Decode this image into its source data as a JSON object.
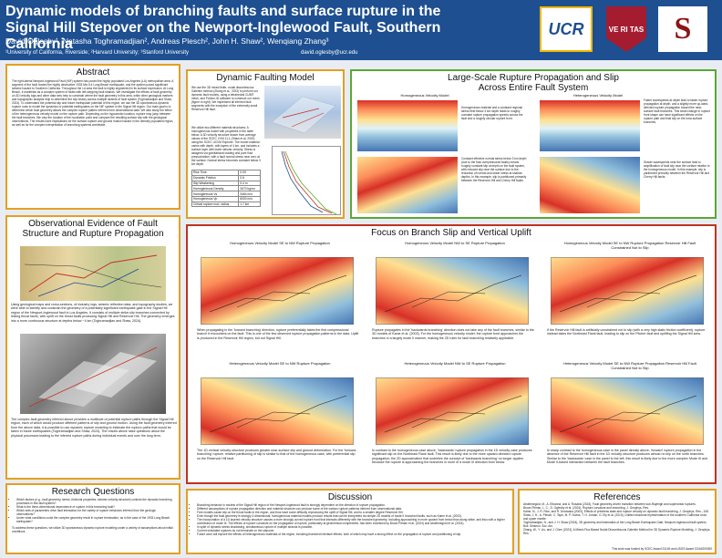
{
  "header": {
    "title": "Dynamic models of branching faults and surface rupture in the Signal Hill Stepover on the Newport-Inglewood Fault, Southern California",
    "authors": "David Oglesby¹, Natasha Toghramadjian², Andreas Plesch², John H. Shaw², Wenqiang Zhang³",
    "affiliations": "¹University of California, Riverside; ²Harvard University; ³Stanford University",
    "email": "david.oglesby@ucr.edu",
    "logos": {
      "ucr": "UCR",
      "harvard": "VE RI TAS",
      "stanford": "S"
    }
  },
  "abstract": {
    "title": "Abstract",
    "text": "The right-lateral Newport-Inglewood Fault (NIF) system has posed the highly populated Los Angeles (LA) metropolitan area. A segment of the fault hosted the highly destructive 1933 Mw 6.4 Long Beach earthquake, and the system posed significant seismic hazard to Southern California. Throughout the LA area the fault is highly segmented in its surface expression. At Long Beach, it manifests as a complex system of faults with left-stepping fault strands. We investigate the effects of fault geometry on 3D velocity logs and other data sets help to constrain where the fault geometry in this area, while other geological markers and topographic analysis help to determine the slip history across multiple strands of fault system (Toghramadjian and Shaw, 2024). To understand the potential slip and future earthquake potential of this region, we use the 3D spontaneous dynamic rupture code to model the dynamics of potential earthquakes on the NIF system in the Signal Hill region. Our main goal is to determine which fault geometry allows the complex rupture pattern inferred from observational data. We also study the effect of the heterogeneous velocity model on the rupture path. Depending on the hypocenter location, rupture may jump between the fault branches. We vary the location of the nucleation point and compare the resulting surface slip with the geological observations. The results have implications for the surface rupture and ground motion hazard in the densely populated region, as well as for the complex interpretation of branching systems worldwide."
  },
  "observational": {
    "title": "Observational Evidence of Fault Structure and Rupture Propagation",
    "caption1": "Using geological maps and cross-sections, oil industry logs, seismic reflection data, and topography studies, we were able to identify and constrain the geometry of a potentially significant earthquake gate in the Signal Hill region of the Newport-Inglewood fault in Los Angeles. It consists of multiple strike-slip branches connected by linking thrust faults, with uplift on the thrust faults producing Signal Hill and Reservoir Hill. The geometry emerges into a more continuous structure at depths below ~4 km (Toghramadjian and Shaw, 2024).",
    "caption2": "The complex fault geometry inferred above provides a multitude of potential rupture paths through the Signal Hill region, each of which would produce different patterns of slip and ground motion. Using the fault geometry inferred from the above data, it is possible to use dynamic rupture modeling to estimate the rupture paths that would be taken in future earthquakes (Toghramadjian and Shaw, 2024). The results above raise questions about the physical processes leading to the inferred rupture paths during individual events and over the long term."
  },
  "research": {
    "title": "Research Questions",
    "items": [
      "Which factors (e.g., fault geometry, stress, frictional properties, seismic velocity structure) controls the dynamic branching processes in this fault system?",
      "What is the three-dimensional dependence of rupture in this branching fault?",
      "Which sets of parameters drive fault interaction for the variety of rupture behaviors inferred from the geologic observations?",
      "Under what conditions could the complex geometry result in rupture termination, as in the case of the 1933 Long Beach earthquake?"
    ],
    "note": "To address these questions, we utilize 3D spontaneous dynamic rupture modeling under a variety of assumptions about initial conditions."
  },
  "dynamic": {
    "title": "Dynamic Faulting Model",
    "intro": "We use the 3D mixed-finite- nodal discontinuous Galerkin method (Zhang et al., 2023) to perform our dynamic fault models, using a tetrahedral CUBIT mesh, and Portion-ID software to construct our mesh (figure to right). We implement all inferred fault segments with the exception of the extremely small Reservoir Hill fault.",
    "features": "We utilize two different material structures: A homogeneous model with properties in the table below. A 3D velocity structure drawn from average values of the SCEC CVM 11.1 (Shaw et al. 2015) using the SCEC UCVM Explorer. The model material varies with depth, with layers of 4 km, and includes a surface layer with lower seismic velocity. Stress is assigned via gravitational loading and pore fluid pressurization, with a fault normal stress near zero at the surface. Normal stress becomes constant below 3 km depth.",
    "table_rows": [
      [
        "Rise Time",
        "0.09"
      ],
      [
        "Dynamic Friction",
        "0.6"
      ],
      [
        "Slip Weakening",
        "0.4 m"
      ],
      [
        "Homogeneous Density",
        "2670 kg/m³"
      ],
      [
        "Homogeneous Vs",
        "3464 m/s"
      ],
      [
        "Homogeneous Vp",
        "6000 m/s"
      ],
      [
        "Critical rupture nucl. radius",
        "1.7 km"
      ]
    ]
  },
  "large_scale": {
    "title": "Large-Scale Rupture Propagation and Slip Across Entire Fault System",
    "left_sub": "Homogeneous Velocity Model",
    "right_sub": "Heterogeneous Velocity Model",
    "left_text1": "Homogeneous material and a constant regional stress field below 3 km depth leads to roughly constant rupture propagation speeds across the fault and a roughly circular rupture front.",
    "left_text2": "Constant effective normal stress below 3 km depth (due to the fluid overpressured faults) means roughly constant slip at depth on the fault system, with reduced slip near the surface due to the reduction of normal and shear stress at shallow depths. In this example, slip is partitioned primarily between the Reservoir Hill and Cherry Hill faults.",
    "right_text1": "Faster wavespeeds at depth lead to faster rupture propagation at depth, and a slightly more up-ward-directed rupture propagation toward the near-surface fault branches. This small change in rupture front shape can have significant effects on the rupture path and final slip on the near-surface branches.",
    "right_text2": "Slower wavespeeds near the surface lead to amplification of fault slip near the surface relative to the homogeneous model. In this example, slip is partitioned primarily between the Reservoir Hill and Cherry Hill faults."
  },
  "branch": {
    "title": "Focus on Branch Slip and Vertical Uplift",
    "panels": [
      {
        "sub": "Homogeneous Velocity Model SE to NW Rupture Propagation",
        "text": "When propagating in the 'forward branching' direction, rupture preferentially takes the first compressional branch it encounters on the fault. This is one of the few observed rupture propagation patterns in the data. Uplift is produced in the Reservoir Hill region, but not Signal Hill."
      },
      {
        "sub": "Homogeneous Velocity Model NW to SE Rupture Propagation",
        "text": "Rupture propagates in the 'backwards branching' direction does not take any of the fault branches, similar to the 3D models of Kame et al. (2003). For the homogeneous velocity model, the rupture front approaches the branches in a largely mode II manner, making the 2D rules for fault branching relatively applicable."
      },
      {
        "sub": "Homogeneous Velocity Model SE to NW Rupture Propagation Reservoir Hill Fault Constrained Not to Slip",
        "text": "If the Reservoir Hill fault is artificially constrained not to slip (with a very high static friction coefficient), rupture instead takes the Northeast Flank fault, leading to slip on the Pitcher fault and uplifting the Signal Hill area."
      },
      {
        "sub": "Heterogeneous Velocity Model SE to NW Rupture Propagation",
        "text": "The 1D vertical velocity structure produces greater near-surface slip and ground deformation. For the 'forward-branching' rupture, relative partitioning of slip is similar to that of the homogeneous case, with preferential slip on the Reservoir Hill fault."
      },
      {
        "sub": "Heterogeneous Velocity Model NW to SE Rupture Propagation",
        "text": "In contrast to the homogeneous case above, 'backwards' rupture propagation in the 1D velocity case produces significant slip on the Northeast Flank fault. This result is likely due to the more upward-directed rupture propagation; the 2D approximation that underlies the concept of 'backwards branching' no longer applies because the rupture is approaching the branches in more of a mode III direction from below."
      },
      {
        "sub": "Heterogeneous Velocity Model SE to NW Rupture Propagation Reservoir Hill Fault Constrained Not to Slip",
        "text": "In sharp contrast to the homogeneous case in the panel directly above, 'forward' rupture propagation in the absence of the Reservoir Hill fault in the 1D velocity structure produces almost no slip on the north branches. Similar to the 'backwards' case in the panel to the left, this result is likely due to the more complex Mode III and Mode II-based interaction between the fault branches."
      }
    ]
  },
  "discussion": {
    "title": "Discussion",
    "items": [
      "Branching behavior in models of the Signal Hill region of the Newport-Inglewood fault is strongly dependent on the direction of rupture propagation.",
      "Different assumptions of rupture propagation direction and material structure can produce some of the various rupture patterns inferred from observational data.",
      "Free models cause slip on the thrust faults in the region, and thus have some difficulty reproducing the uplift of Signal Hill, and to a smaller degree Reservoir Hill.",
      "Even though the fault geometry is strongly 3-dimensional, homogeneous material models produce results that can be interpreted via simple 2D models of mode II branched faults, such as Kame et al. (2003).",
      "The incorporation of a 1D layered velocity structure causes a more strongly curved rupture front that interacts differently with the branched geometry, including approaching in more upward from below than along strike, and thus with a higher contribution of mode III. The effects of rupture curvature on the propagation of rupture, particularly at geometrical complexities, has been examined by Bruce-Pitman et al. (2024) and Abdelmeguid et al. (2024).",
      "In spite of dynamic stress shadowing, simultaneous rupture of multiple strands is possible.",
      "Current simulated ruptures do not terminate on the stepover.",
      "Future work will explore the effects of heterogeneous materials of the region, including branched interface effects, both of which may have a strong effect on the propagation of rupture and partitioning of slip."
    ]
  },
  "references": {
    "title": "References",
    "items": [
      "Abdelmeguid, M., A. Elbanna, and A. Rosakis (2024), Fault geometry-driven transition between sub-Rayleigh and supershear ruptures.",
      "Bruce-Pitman, L. C., D. Oglesby et al. (2024), Rupture curvature and branching, J. Geophys. Res.",
      "Kame, N., J. R. Rice, and R. Dmowska (2003), Effects of prestress state and rupture velocity on dynamic fault branching, J. Geophys. Res., 108.",
      "Shaw, J. H., A. Plesch, C. Tape, M. P. Suess, T. H. Jordan, G. Ely et al. (2015), Unified structural representation of the southern California crust and upper mantle.",
      "Toghramadjian, N., and J. H. Shaw (2024), 3D geometry and kinematics of the Long Beach Earthquake Gate, Newport-Inglewood fault system, Bull. Seismol. Soc. Am.",
      "Zhang, W., Y. Liu, and J. Chen (2023), A Mixed-Flux-Based Nodal Discontinuous Galerkin Method for 3D Dynamic Rupture Modeling, J. Geophys. Res."
    ],
    "funding": "This work was funded by SCEC Award 24149 and USGS Award G24AS00050."
  }
}
